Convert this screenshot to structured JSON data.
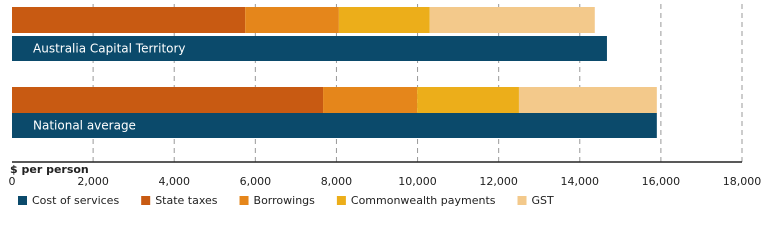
{
  "chart_data": {
    "type": "bar",
    "orientation": "horizontal",
    "x_label": "$ per person",
    "categories": [
      "Australia Capital Territory",
      "National average"
    ],
    "series": [
      {
        "name": "Cost of services",
        "color": "#0b4a6b",
        "values": [
          14670,
          15900
        ]
      },
      {
        "name": "State taxes",
        "color": "#c85a12",
        "values": [
          5750,
          7670
        ]
      },
      {
        "name": "Borrowings",
        "color": "#e5861b",
        "values": [
          2310,
          2320
        ]
      },
      {
        "name": "Commonwealth payments",
        "color": "#ecae1a",
        "values": [
          2240,
          2510
        ]
      },
      {
        "name": "GST",
        "color": "#f3c98b",
        "values": [
          4070,
          3400
        ]
      }
    ],
    "xlim": [
      0,
      18000
    ],
    "xticks": [
      0,
      {
        "value": 2000,
        "label": "2,000"
      },
      {
        "value": 4000,
        "label": "4,000"
      },
      {
        "value": 6000,
        "label": "6,000"
      },
      {
        "value": 8000,
        "label": "8,000"
      },
      {
        "value": 10000,
        "label": "10,000"
      },
      {
        "value": 12000,
        "label": "12,000"
      },
      {
        "value": 14000,
        "label": "14,000"
      },
      {
        "value": 16000,
        "label": "16,000"
      },
      {
        "value": 18000,
        "label": "18,000"
      }
    ],
    "grid": true
  }
}
